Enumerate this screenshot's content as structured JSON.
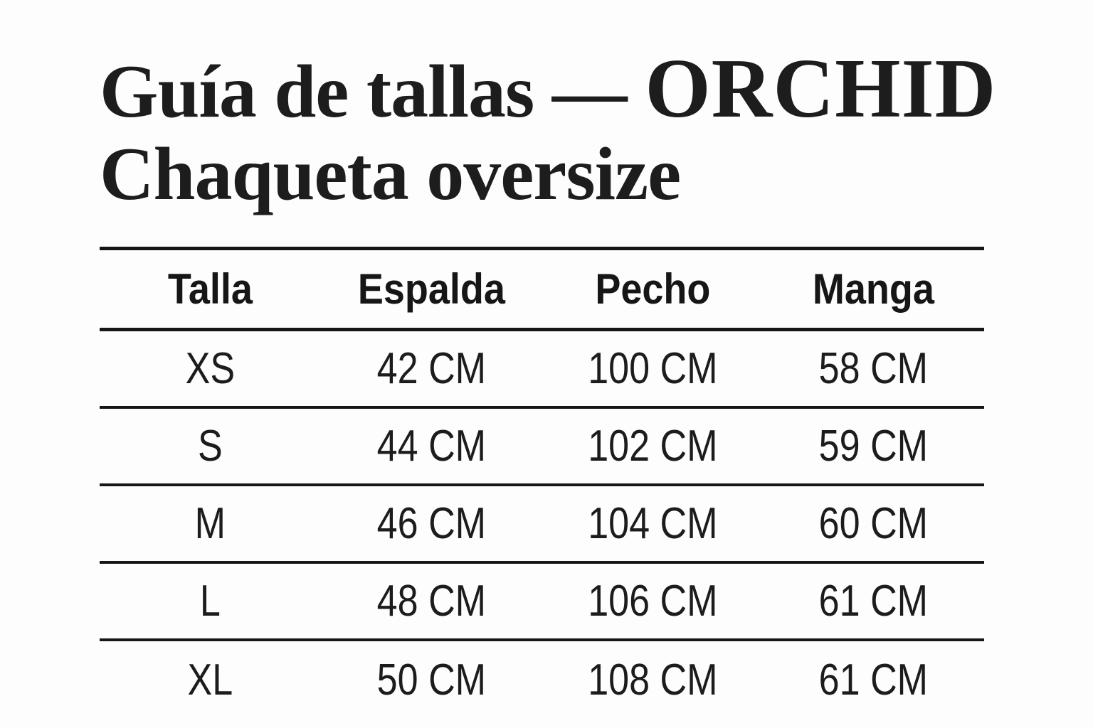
{
  "theme": {
    "background": "#fdfdfd",
    "text_color": "#1d1d1d",
    "rule_color": "#161616"
  },
  "title": {
    "prefix": "Guía de tallas —",
    "brand": "ORCHID",
    "line2": "Chaqueta oversize"
  },
  "table": {
    "headers": [
      "Talla",
      "Espalda",
      "Pecho",
      "Manga"
    ],
    "rows": [
      [
        "XS",
        "42 CM",
        "100 CM",
        "58 CM"
      ],
      [
        "S",
        "44 CM",
        "102 CM",
        "59 CM"
      ],
      [
        "M",
        "46 CM",
        "104 CM",
        "60 CM"
      ],
      [
        "L",
        "48 CM",
        "106 CM",
        "61 CM"
      ],
      [
        "XL",
        "50 CM",
        "108 CM",
        "61 CM"
      ]
    ]
  }
}
